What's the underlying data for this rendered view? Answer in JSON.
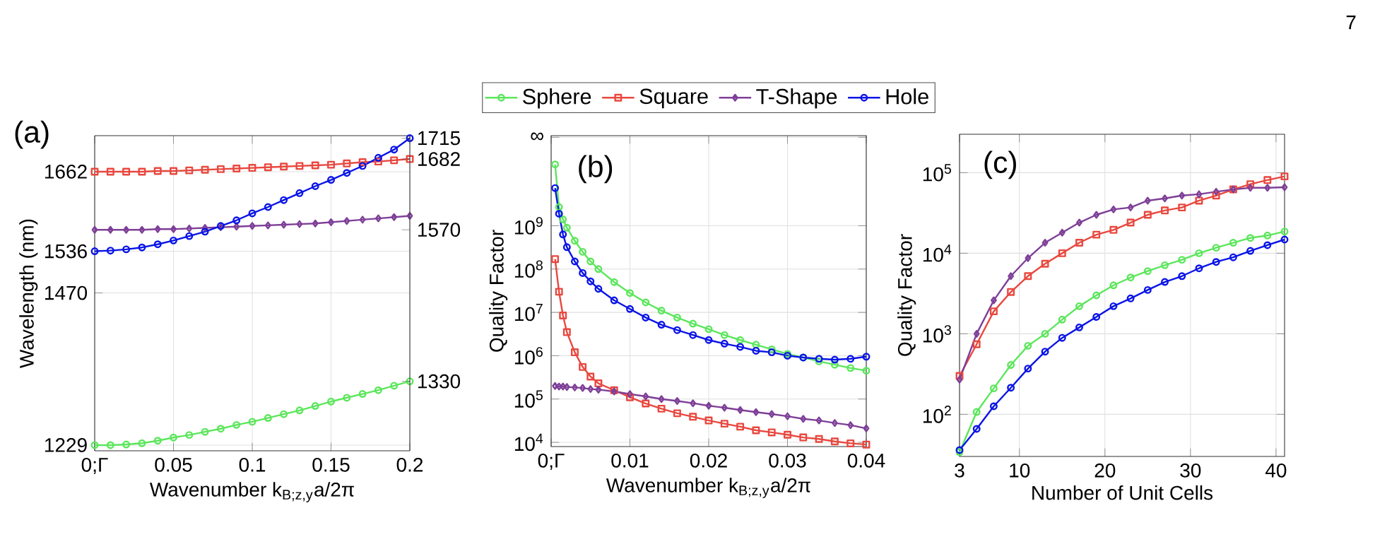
{
  "chart_data": [
    {
      "type": "line",
      "title": "(a)",
      "xlabel": "Wavenumber k$_{B;z,y}$a/2π",
      "ylabel": "Wavelength (nm)",
      "x": [
        0,
        0.01,
        0.02,
        0.03,
        0.04,
        0.05,
        0.06,
        0.07,
        0.08,
        0.09,
        0.1,
        0.11,
        0.12,
        0.13,
        0.14,
        0.15,
        0.16,
        0.17,
        0.18,
        0.19,
        0.2
      ],
      "xlim": [
        0,
        0.2
      ],
      "xticks": [
        {
          "value": 0,
          "label": "0;Γ"
        },
        0.05,
        0.1,
        0.15,
        0.2
      ],
      "ylim": [
        1220,
        1719
      ],
      "yticks": [
        1229,
        1470,
        1536,
        1662
      ],
      "y2lim": [
        1220,
        1719
      ],
      "y2ticks": [
        1330,
        1570,
        1682,
        1715
      ],
      "grid": true,
      "line_style": "solid",
      "series": [
        {
          "color": "#5ce65c",
          "marker": "circle",
          "values": [
            1229,
            1229,
            1230,
            1232,
            1236,
            1241,
            1245,
            1250,
            1255,
            1261,
            1266,
            1272,
            1278,
            1284,
            1291,
            1298,
            1304,
            1310,
            1316,
            1323,
            1330
          ]
        },
        {
          "color": "#e8483f",
          "marker": "square",
          "values": [
            1662,
            1662,
            1662,
            1662,
            1663,
            1663,
            1664,
            1665,
            1666,
            1667,
            1668,
            1669,
            1670,
            1671,
            1672,
            1673,
            1675,
            1677,
            1678,
            1680,
            1682
          ]
        },
        {
          "color": "#7e3f98",
          "marker": "diamond",
          "values": [
            1570,
            1570,
            1570,
            1570,
            1571,
            1571,
            1572,
            1573,
            1574,
            1575,
            1576,
            1577,
            1578,
            1579,
            1580,
            1582,
            1584,
            1586,
            1588,
            1590,
            1592
          ]
        },
        {
          "color": "#0a14e6",
          "marker": "circle",
          "values": [
            1536,
            1537,
            1539,
            1542,
            1547,
            1553,
            1560,
            1567,
            1576,
            1585,
            1596,
            1606,
            1617,
            1628,
            1639,
            1649,
            1660,
            1671,
            1684,
            1697,
            1715
          ]
        }
      ]
    },
    {
      "type": "line",
      "title": "(b)",
      "xlabel": "Wavenumber k$_{B;z,y}$a/2π",
      "ylabel": "Quality Factor",
      "log": "y",
      "x": [
        0.0005,
        0.001,
        0.0015,
        0.002,
        0.003,
        0.004,
        0.005,
        0.006,
        0.008,
        0.01,
        0.012,
        0.014,
        0.016,
        0.018,
        0.02,
        0.022,
        0.024,
        0.026,
        0.028,
        0.03,
        0.032,
        0.034,
        0.036,
        0.038,
        0.04
      ],
      "xlim": [
        0,
        0.04
      ],
      "xticks": [
        {
          "value": 0,
          "label": "0;Γ"
        },
        0.01,
        0.02,
        0.03,
        0.04
      ],
      "ylim": [
        8000,
        120000000000
      ],
      "yticks": [
        {
          "value": 10000,
          "label": "10$^{4}$"
        },
        {
          "value": 100000,
          "label": "10$^{5}$"
        },
        {
          "value": 1000000,
          "label": "10$^{6}$"
        },
        {
          "value": 10000000,
          "label": "10$^{7}$"
        },
        {
          "value": 100000000,
          "label": "10$^{8}$"
        },
        {
          "value": 1000000000,
          "label": "10$^{9}$"
        },
        {
          "value": 110000000000,
          "label": "∞"
        }
      ],
      "grid": true,
      "legend": "top",
      "line_style": "solid",
      "series": [
        {
          "name": "Sphere",
          "color": "#5ce65c",
          "marker": "circle",
          "values": [
            26000000000.0,
            2700000000.0,
            1400000000.0,
            900000000.0,
            450000000.0,
            250000000.0,
            150000000.0,
            100000000.0,
            50000000.0,
            28000000.0,
            17000000.0,
            11000000.0,
            7600000.0,
            5500000.0,
            4100000.0,
            3000000.0,
            2300000.0,
            1800000.0,
            1400000.0,
            1100000.0,
            910000.0,
            740000.0,
            620000.0,
            520000.0,
            450000.0
          ]
        },
        {
          "name": "Square",
          "color": "#e8483f",
          "marker": "square",
          "values": [
            170000000.0,
            30000000.0,
            8500000.0,
            3500000.0,
            1200000.0,
            550000.0,
            330000.0,
            230000.0,
            160000.0,
            110000.0,
            79000.0,
            60000.0,
            47000.0,
            39000.0,
            32000.0,
            27000.0,
            23000.0,
            19000.0,
            17000.0,
            15000.0,
            13000.0,
            12000.0,
            10500.0,
            9500.0,
            8900.0
          ]
        },
        {
          "name": "T-Shape",
          "color": "#7e3f98",
          "marker": "diamond",
          "values": [
            200000.0,
            195000.0,
            195000.0,
            190000.0,
            185000.0,
            180000.0,
            170000.0,
            165000.0,
            150000.0,
            130000.0,
            115000.0,
            100000.0,
            90000.0,
            80000.0,
            70000.0,
            63000.0,
            56000.0,
            50000.0,
            45000.0,
            40000.0,
            35000.0,
            32000.0,
            28000.0,
            25000.0,
            21000.0
          ]
        },
        {
          "name": "Hole",
          "color": "#0a14e6",
          "marker": "circle",
          "values": [
            7400000000.0,
            1900000000.0,
            630000000.0,
            320000000.0,
            150000000.0,
            81000000.0,
            52000000.0,
            35000000.0,
            19000000.0,
            12000000.0,
            7600000.0,
            5200000.0,
            3900000.0,
            3000000.0,
            2300000.0,
            1900000.0,
            1600000.0,
            1300000.0,
            1200000.0,
            1000000.0,
            910000.0,
            850000.0,
            810000.0,
            850000.0,
            950000.0
          ]
        }
      ]
    },
    {
      "type": "line",
      "title": "(c)",
      "xlabel": "Number of Unit Cells",
      "ylabel": "Quality Factor",
      "log": "y",
      "x": [
        3,
        5,
        7,
        9,
        11,
        13,
        15,
        17,
        19,
        21,
        23,
        25,
        27,
        29,
        31,
        33,
        35,
        37,
        39,
        41
      ],
      "xlim": [
        3,
        41
      ],
      "xticks": [
        3,
        10,
        20,
        30,
        40
      ],
      "ylim": [
        30,
        300000
      ],
      "yticks": [
        {
          "value": 100,
          "label": "10$^{2}$"
        },
        {
          "value": 1000,
          "label": "10$^{3}$"
        },
        {
          "value": 10000,
          "label": "10$^{4}$"
        },
        {
          "value": 100000,
          "label": "10$^{5}$"
        }
      ],
      "grid": true,
      "line_style": "solid",
      "annotations": [
        "7"
      ],
      "series": [
        {
          "color": "#5ce65c",
          "marker": "circle",
          "values": [
            34,
            107,
            210,
            410,
            710,
            1000,
            1500,
            2200,
            3000,
            4000,
            5000,
            6000,
            7100,
            8300,
            10000,
            11700,
            13500,
            15500,
            16600,
            18600
          ]
        },
        {
          "color": "#e8483f",
          "marker": "square",
          "values": [
            300,
            740,
            1900,
            3300,
            5200,
            7400,
            10000,
            13500,
            17000,
            19500,
            24000,
            30000,
            34000,
            37000,
            45000,
            52000,
            62000,
            72000,
            81000,
            90000
          ]
        },
        {
          "color": "#7e3f98",
          "marker": "diamond",
          "values": [
            270,
            1000,
            2600,
            5200,
            8700,
            13500,
            18000,
            24000,
            30000,
            35000,
            37000,
            45000,
            48000,
            52000,
            54000,
            58000,
            62000,
            65000,
            65000,
            66000
          ]
        },
        {
          "color": "#0a14e6",
          "marker": "circle",
          "values": [
            36,
            66,
            126,
            214,
            370,
            600,
            890,
            1200,
            1620,
            2200,
            2750,
            3500,
            4400,
            5200,
            6500,
            7800,
            8900,
            10700,
            12600,
            14800
          ]
        }
      ]
    }
  ]
}
